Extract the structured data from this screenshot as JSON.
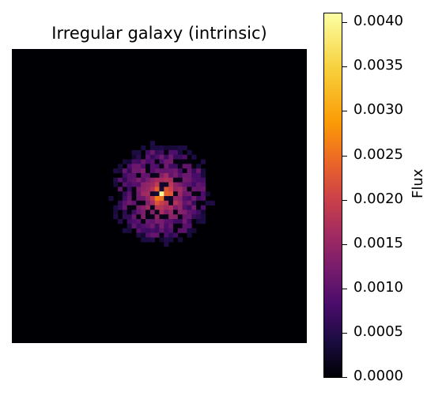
{
  "chart_data": {
    "type": "heatmap",
    "title": "Irregular galaxy (intrinsic)",
    "colormap": "inferno",
    "axes_visible": false,
    "grid": false,
    "colorbar": {
      "label": "Flux",
      "range": [
        0.0,
        0.0041
      ],
      "ticks": [
        "0.0000",
        "0.0005",
        "0.0010",
        "0.0015",
        "0.0020",
        "0.0025",
        "0.0030",
        "0.0035",
        "0.0040"
      ],
      "tick_values": [
        0.0,
        0.0005,
        0.001,
        0.0015,
        0.002,
        0.0025,
        0.003,
        0.0035,
        0.004
      ]
    },
    "image": {
      "grid_size": 64,
      "background_value": 0.0,
      "peak_value": 0.004,
      "peak_pixel": [
        32,
        31
      ],
      "core_flux": 0.0026,
      "halo_flux": 0.0008,
      "source_radius_pixels": 9.5
    }
  }
}
